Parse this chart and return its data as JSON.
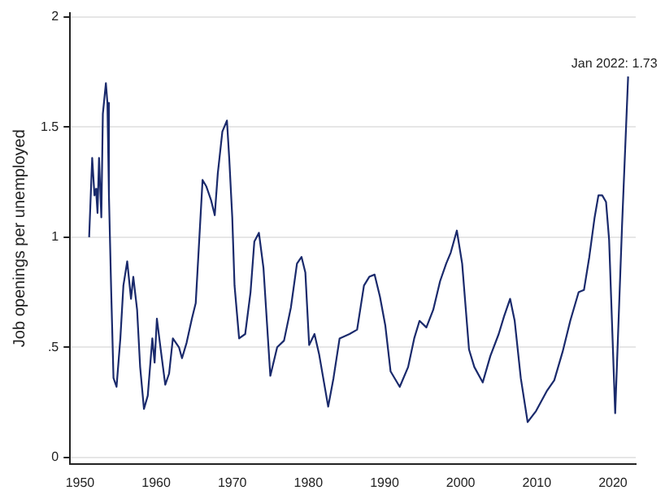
{
  "chart_data": {
    "type": "line",
    "ylabel": "Job openings per unemployed",
    "color": "#1a2a6c",
    "marker": "none",
    "grid": "y",
    "legend": false,
    "xlim": [
      1948.7,
      2023
    ],
    "xticks": [
      1950,
      1960,
      1970,
      1980,
      1990,
      2000,
      2010,
      2020
    ],
    "ylim": [
      -0.03,
      2.02
    ],
    "yticks": [
      0,
      {
        "value": 0.5,
        "label": ".5"
      },
      1,
      1.5,
      2
    ],
    "x": [
      1951.2,
      1951.6,
      1951.9,
      1952.1,
      1952.3,
      1952.5,
      1952.8,
      1953.0,
      1953.4,
      1953.6,
      1953.8,
      1954.1,
      1954.4,
      1954.8,
      1955.3,
      1955.7,
      1956.2,
      1956.7,
      1957.0,
      1957.5,
      1957.9,
      1958.4,
      1958.9,
      1959.5,
      1959.8,
      1960.1,
      1960.6,
      1961.2,
      1961.7,
      1962.2,
      1963.0,
      1963.4,
      1964.0,
      1964.7,
      1965.2,
      1966.1,
      1966.6,
      1967.2,
      1967.7,
      1968.1,
      1968.7,
      1969.3,
      1969.6,
      1970.0,
      1970.3,
      1970.9,
      1971.7,
      1972.4,
      1972.9,
      1973.5,
      1974.1,
      1975.0,
      1975.9,
      1976.8,
      1977.7,
      1978.5,
      1979.1,
      1979.6,
      1980.1,
      1980.8,
      1981.4,
      1982.6,
      1983.3,
      1984.1,
      1985.4,
      1986.4,
      1987.3,
      1988.0,
      1988.7,
      1989.4,
      1990.1,
      1990.8,
      1992.0,
      1993.1,
      1993.9,
      1994.6,
      1995.5,
      1996.4,
      1997.3,
      1998.1,
      1998.7,
      1999.5,
      2000.2,
      2001.1,
      2001.8,
      2002.9,
      2003.9,
      2005.0,
      2005.7,
      2006.5,
      2007.1,
      2007.9,
      2008.8,
      2009.9,
      2011.3,
      2012.3,
      2013.4,
      2014.4,
      2015.5,
      2016.2,
      2016.9,
      2017.6,
      2018.1,
      2018.6,
      2019.1,
      2019.5,
      2020.3,
      2021.2,
      2022.0
    ],
    "values": [
      1.0,
      1.36,
      1.19,
      1.22,
      1.11,
      1.36,
      1.09,
      1.56,
      1.7,
      1.61,
      1.19,
      0.75,
      0.36,
      0.32,
      0.54,
      0.78,
      0.89,
      0.72,
      0.82,
      0.67,
      0.41,
      0.22,
      0.28,
      0.54,
      0.43,
      0.63,
      0.49,
      0.33,
      0.38,
      0.54,
      0.5,
      0.45,
      0.52,
      0.63,
      0.7,
      1.26,
      1.23,
      1.17,
      1.1,
      1.29,
      1.48,
      1.53,
      1.36,
      1.09,
      0.78,
      0.54,
      0.56,
      0.75,
      0.98,
      1.02,
      0.86,
      0.37,
      0.5,
      0.53,
      0.68,
      0.88,
      0.91,
      0.84,
      0.51,
      0.56,
      0.47,
      0.23,
      0.36,
      0.54,
      0.56,
      0.58,
      0.78,
      0.82,
      0.83,
      0.73,
      0.6,
      0.39,
      0.32,
      0.41,
      0.54,
      0.62,
      0.59,
      0.67,
      0.8,
      0.88,
      0.93,
      1.03,
      0.88,
      0.49,
      0.41,
      0.34,
      0.46,
      0.56,
      0.64,
      0.72,
      0.62,
      0.36,
      0.16,
      0.21,
      0.3,
      0.35,
      0.48,
      0.62,
      0.75,
      0.76,
      0.91,
      1.09,
      1.19,
      1.19,
      1.16,
      0.99,
      0.2,
      1.05,
      1.73
    ],
    "annotations": [
      {
        "text": "Jan 2022: 1.73",
        "x": 2022.0,
        "y": 1.73
      }
    ]
  }
}
